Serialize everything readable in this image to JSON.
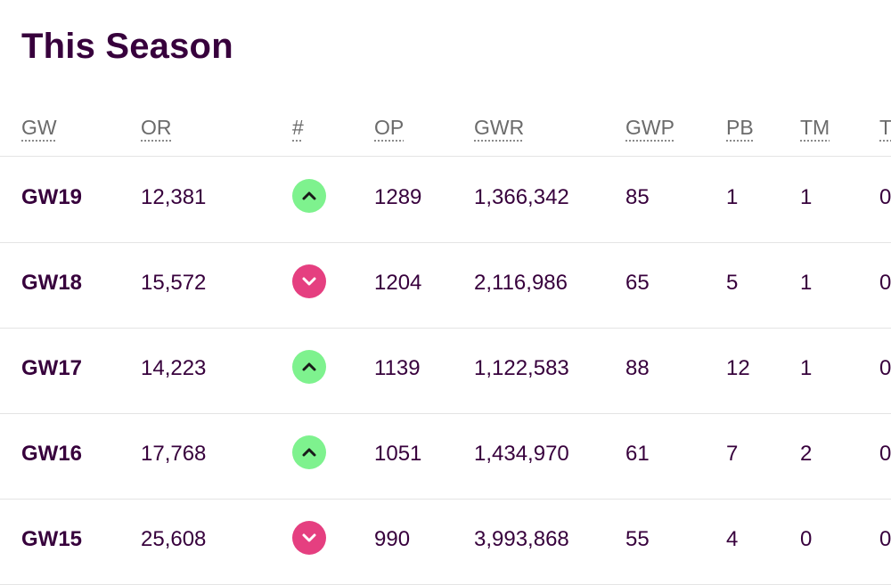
{
  "title": "This Season",
  "headers": [
    "GW",
    "OR",
    "#",
    "OP",
    "GWR",
    "GWP",
    "PB",
    "TM",
    "TC"
  ],
  "rows": [
    {
      "gw": "GW19",
      "or": "12,381",
      "movement": "up",
      "op": "1289",
      "gwr": "1,366,342",
      "gwp": "85",
      "pb": "1",
      "tm": "1",
      "tc": "0"
    },
    {
      "gw": "GW18",
      "or": "15,572",
      "movement": "down",
      "op": "1204",
      "gwr": "2,116,986",
      "gwp": "65",
      "pb": "5",
      "tm": "1",
      "tc": "0"
    },
    {
      "gw": "GW17",
      "or": "14,223",
      "movement": "up",
      "op": "1139",
      "gwr": "1,122,583",
      "gwp": "88",
      "pb": "12",
      "tm": "1",
      "tc": "0"
    },
    {
      "gw": "GW16",
      "or": "17,768",
      "movement": "up",
      "op": "1051",
      "gwr": "1,434,970",
      "gwp": "61",
      "pb": "7",
      "tm": "2",
      "tc": "0"
    },
    {
      "gw": "GW15",
      "or": "25,608",
      "movement": "down",
      "op": "990",
      "gwr": "3,993,868",
      "gwp": "55",
      "pb": "4",
      "tm": "0",
      "tc": "0"
    }
  ],
  "colors": {
    "text": "#37003c",
    "header_text": "#6b6b6b",
    "up": "#7ef28e",
    "down": "#e53f80",
    "divider": "#e4e4e4"
  },
  "icons": {
    "up": "chevron-up-icon",
    "down": "chevron-down-icon"
  }
}
